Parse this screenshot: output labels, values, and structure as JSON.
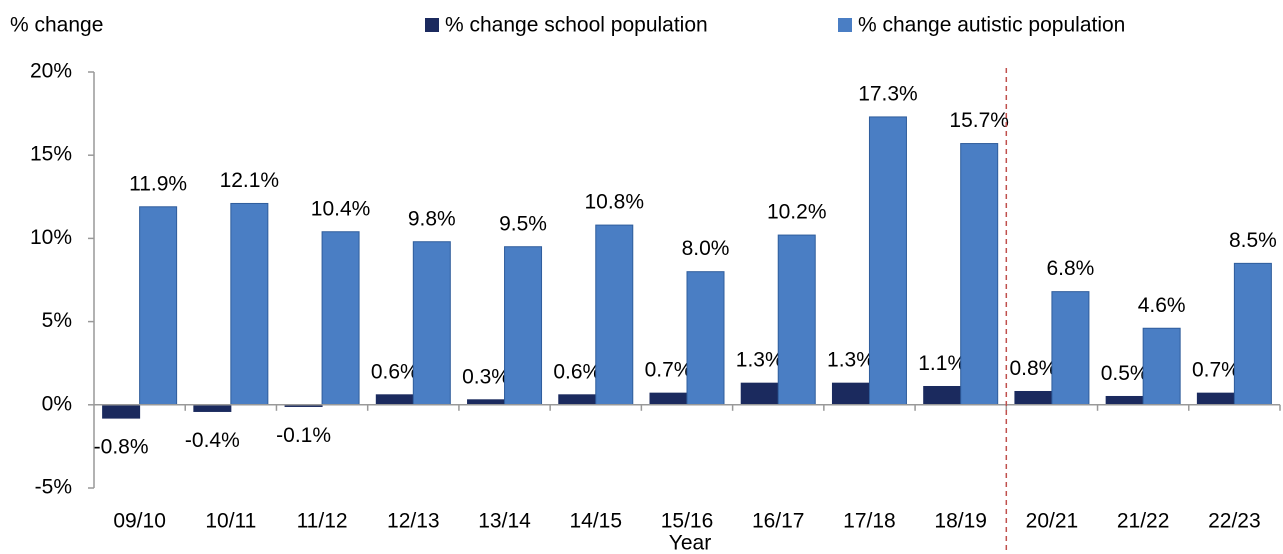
{
  "chart_data": {
    "type": "bar",
    "y_label": "% change",
    "x_label": "Year",
    "categories": [
      "09/10",
      "10/11",
      "11/12",
      "12/13",
      "13/14",
      "14/15",
      "15/16",
      "16/17",
      "17/18",
      "18/19",
      "20/21",
      "21/22",
      "22/23"
    ],
    "series": [
      {
        "name": "% change school population",
        "color": "#1b2a5e",
        "values": [
          -0.8,
          -0.4,
          -0.1,
          0.6,
          0.3,
          0.6,
          0.7,
          1.3,
          1.3,
          1.1,
          0.8,
          0.5,
          0.7
        ],
        "value_labels": [
          "-0.8%",
          "-0.4%",
          "-0.1%",
          "0.6%",
          "0.3%",
          "0.6%",
          "0.7%",
          "1.3%",
          "1.3%",
          "1.1%",
          "0.8%",
          "0.5%",
          "0.7%"
        ]
      },
      {
        "name": "% change autistic population",
        "color": "#4a7ec4",
        "values": [
          11.9,
          12.1,
          10.4,
          9.8,
          9.5,
          10.8,
          8.0,
          10.2,
          17.3,
          15.7,
          6.8,
          4.6,
          8.5
        ],
        "value_labels": [
          "11.9%",
          "12.1%",
          "10.4%",
          "9.8%",
          "9.5%",
          "10.8%",
          "8.0%",
          "10.2%",
          "17.3%",
          "15.7%",
          "6.8%",
          "4.6%",
          "8.5%"
        ]
      }
    ],
    "ylim": [
      -5,
      20
    ],
    "yticks": [
      {
        "value": -5,
        "label": "-5%"
      },
      {
        "value": 0,
        "label": "0%"
      },
      {
        "value": 5,
        "label": "5%"
      },
      {
        "value": 10,
        "label": "10%"
      },
      {
        "value": 15,
        "label": "15%"
      },
      {
        "value": 20,
        "label": "20%"
      }
    ]
  }
}
